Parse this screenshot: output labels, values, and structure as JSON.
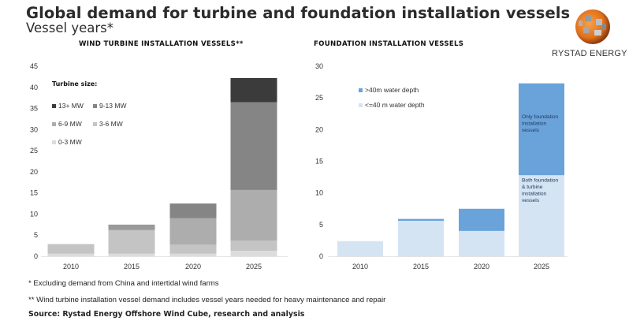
{
  "header": {
    "title": "Global demand for turbine and foundation installation vessels",
    "subtitle": "Vessel years*"
  },
  "logo": {
    "text": "RYSTAD ENERGY",
    "icon": "rystad-globe-icon"
  },
  "footnotes": [
    "* Excluding demand from China and intertidal wind farms",
    "** Wind turbine installation vessel demand includes vessel years needed for heavy maintenance and repair"
  ],
  "source": "Source: Rystad Energy Offshore Wind Cube, research and analysis",
  "chart_data": [
    {
      "type": "bar",
      "stacked": true,
      "title": "WIND TURBINE INSTALLATION VESSELS**",
      "xlabel": "",
      "ylabel": "Vessel years",
      "categories": [
        "2010",
        "2015",
        "2020",
        "2025"
      ],
      "ylim": [
        0,
        45
      ],
      "yticks": [
        0,
        5,
        10,
        15,
        20,
        25,
        30,
        35,
        40,
        45
      ],
      "grid": false,
      "legend_title": "Turbine size:",
      "legend_position": "top-left",
      "series": [
        {
          "name": "0-3 MW",
          "color": "#dcdcdc",
          "values": [
            0.6,
            0.6,
            0.6,
            1.3
          ]
        },
        {
          "name": "3-6 MW",
          "color": "#c4c4c4",
          "values": [
            2.3,
            5.6,
            2.2,
            2.4
          ]
        },
        {
          "name": "6-9 MW",
          "color": "#adadad",
          "values": [
            0,
            0,
            6.2,
            12.0
          ]
        },
        {
          "name": "9-13 MW",
          "color": "#9a9a9a",
          "values": [
            0,
            1.3,
            0,
            0
          ]
        },
        {
          "name": "9-13 MW (dark)",
          "color": "#858585",
          "values": [
            0,
            0,
            3.5,
            20.8
          ]
        },
        {
          "name": "13+ MW",
          "color": "#3b3b3b",
          "values": [
            0,
            0,
            0,
            5.7
          ]
        }
      ],
      "legend": [
        {
          "name": "13+ MW",
          "color": "#3b3b3b"
        },
        {
          "name": "9-13 MW",
          "color": "#858585"
        },
        {
          "name": "6-9 MW",
          "color": "#adadad"
        },
        {
          "name": "3-6 MW",
          "color": "#c4c4c4"
        },
        {
          "name": "0-3 MW",
          "color": "#dcdcdc"
        }
      ]
    },
    {
      "type": "bar",
      "stacked": true,
      "title": "FOUNDATION INSTALLATION VESSELS",
      "xlabel": "",
      "ylabel": "Vessel years",
      "categories": [
        "2010",
        "2015",
        "2020",
        "2025"
      ],
      "ylim": [
        0,
        30
      ],
      "yticks": [
        0,
        5,
        10,
        15,
        20,
        25,
        30
      ],
      "grid": false,
      "legend_position": "top-left",
      "series": [
        {
          "name": "<=40 m water depth",
          "color": "#d5e4f3",
          "values": [
            2.4,
            5.6,
            4.0,
            12.8
          ]
        },
        {
          "name": ">40m water depth",
          "color": "#6aa3d9",
          "values": [
            0,
            0.3,
            3.5,
            14.5
          ]
        }
      ],
      "legend": [
        {
          "name": ">40m water depth",
          "color": "#6aa3d9"
        },
        {
          "name": "<=40 m water depth",
          "color": "#d5e4f3"
        }
      ],
      "annotations": [
        {
          "category": "2025",
          "series": ">40m water depth",
          "lines": [
            "Only foundation",
            "installation",
            "vessels"
          ]
        },
        {
          "category": "2025",
          "series": "<=40 m water depth",
          "lines": [
            "Both foundation",
            "& turbine",
            "installation",
            "vessels"
          ]
        }
      ]
    }
  ]
}
